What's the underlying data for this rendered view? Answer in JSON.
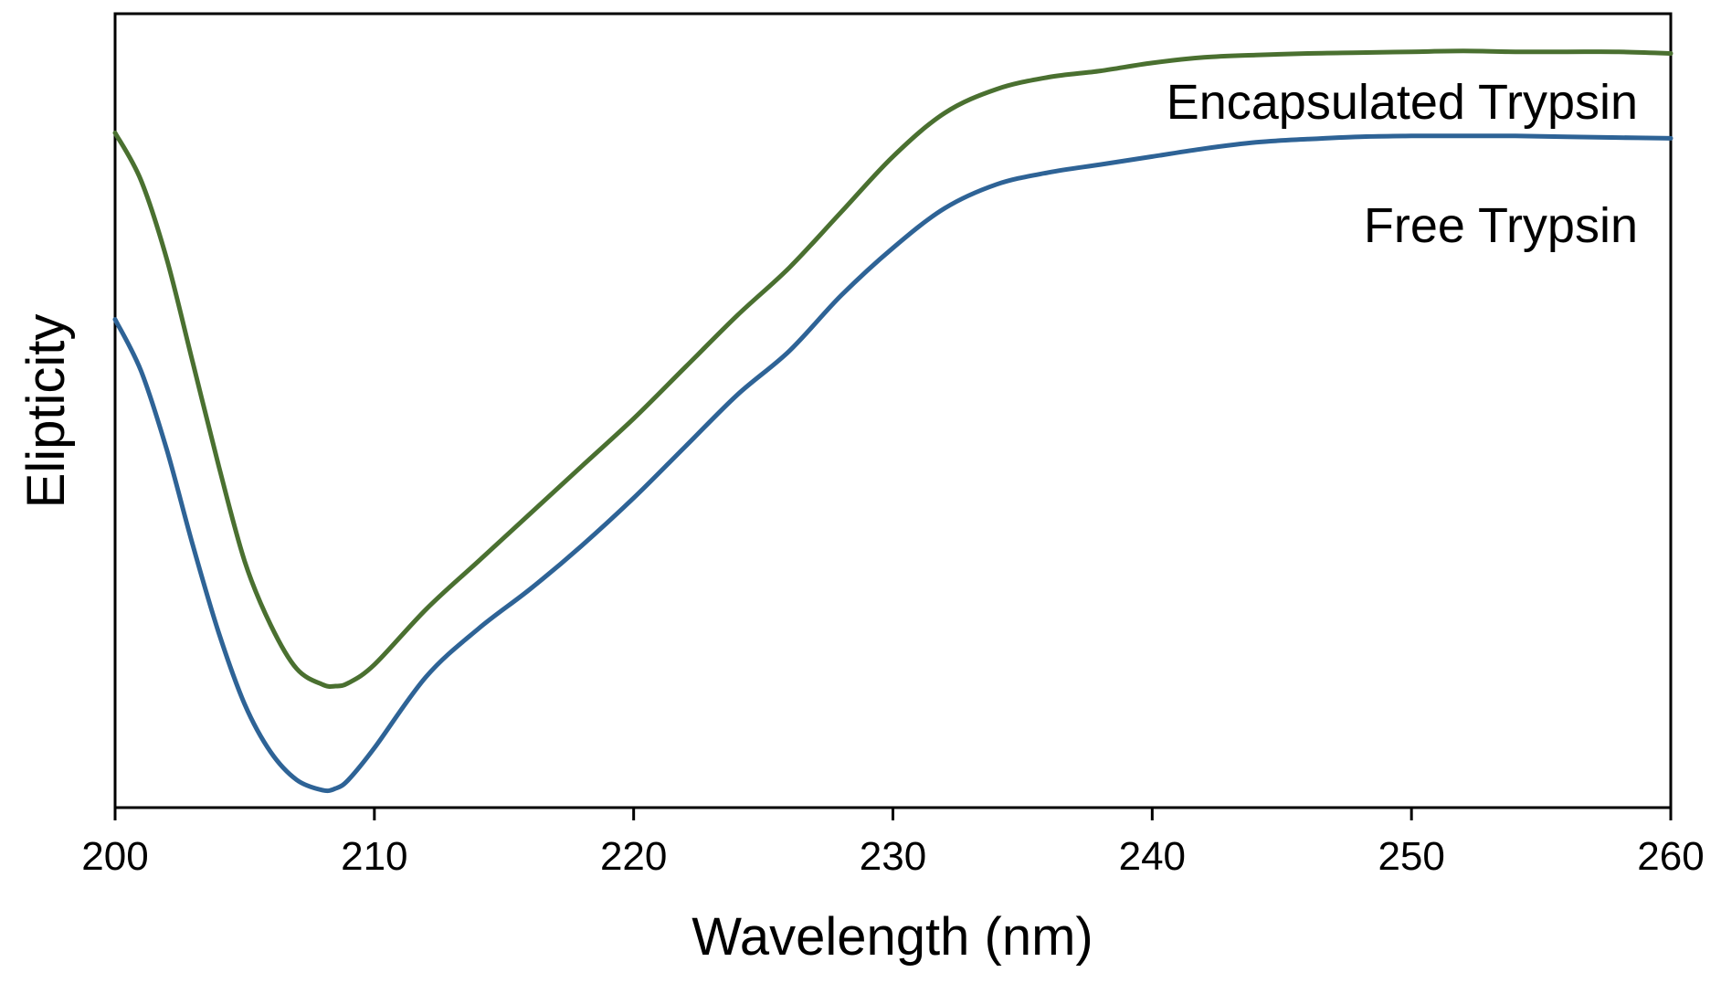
{
  "chart_data": {
    "type": "line",
    "title": "",
    "xlabel": "Wavelength (nm)",
    "ylabel": "Elipticity",
    "xlim": [
      200,
      260
    ],
    "ylim": [
      0,
      10
    ],
    "grid": false,
    "x_ticks": [
      200,
      210,
      220,
      230,
      240,
      250,
      260
    ],
    "x_tick_labels": [
      "200",
      "210",
      "220",
      "230",
      "240",
      "250",
      "260"
    ],
    "y_ticks_shown": false,
    "series": [
      {
        "name": "Encapsulated Trypsin",
        "color": "#4a7030",
        "x": [
          200,
          201,
          202,
          203,
          204,
          205,
          206,
          207,
          208,
          208.5,
          209,
          210,
          212,
          214,
          216,
          218,
          220,
          222,
          224,
          226,
          228,
          230,
          232,
          234,
          236,
          238,
          240,
          242,
          244,
          246,
          248,
          250,
          252,
          254,
          256,
          258,
          260
        ],
        "values": [
          8.5,
          7.9,
          6.9,
          5.6,
          4.3,
          3.1,
          2.3,
          1.75,
          1.55,
          1.53,
          1.57,
          1.8,
          2.5,
          3.1,
          3.7,
          4.3,
          4.9,
          5.55,
          6.2,
          6.8,
          7.5,
          8.2,
          8.75,
          9.05,
          9.2,
          9.28,
          9.38,
          9.45,
          9.48,
          9.5,
          9.51,
          9.52,
          9.53,
          9.52,
          9.52,
          9.52,
          9.5
        ]
      },
      {
        "name": "Free Trypsin",
        "color": "#2e6396",
        "x": [
          200,
          201,
          202,
          203,
          204,
          205,
          206,
          207,
          208,
          208.5,
          209,
          210,
          212,
          214,
          216,
          218,
          220,
          222,
          224,
          226,
          228,
          230,
          232,
          234,
          236,
          238,
          240,
          242,
          244,
          246,
          248,
          250,
          252,
          254,
          256,
          258,
          260
        ],
        "values": [
          6.15,
          5.5,
          4.5,
          3.3,
          2.2,
          1.3,
          0.7,
          0.35,
          0.22,
          0.24,
          0.35,
          0.75,
          1.65,
          2.25,
          2.75,
          3.3,
          3.9,
          4.55,
          5.2,
          5.75,
          6.45,
          7.05,
          7.55,
          7.85,
          8.0,
          8.1,
          8.2,
          8.3,
          8.38,
          8.42,
          8.45,
          8.46,
          8.46,
          8.46,
          8.45,
          8.44,
          8.43
        ]
      }
    ],
    "annotations": [
      {
        "text": "Encapsulated Trypsin",
        "series": "Encapsulated Trypsin"
      },
      {
        "text": "Free Trypsin",
        "series": "Free Trypsin"
      }
    ]
  }
}
